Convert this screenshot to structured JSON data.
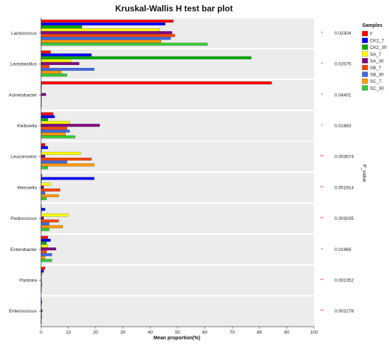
{
  "chart_data": {
    "type": "bar",
    "orientation": "horizontal",
    "title": "Kruskal-Wallis H test bar plot",
    "xlabel": "Mean proportion(%)",
    "xlim": [
      0,
      100
    ],
    "xticks": [
      0,
      10,
      20,
      30,
      40,
      50,
      60,
      70,
      80,
      90,
      100
    ],
    "categories": [
      "Lactococcus",
      "Lactobacillus",
      "Acinetobacter",
      "Klebsiella",
      "Leuconostoc",
      "Weissella",
      "Pediococcus",
      "Enterobacter",
      "Pantoea",
      "Enterococcus"
    ],
    "legend_title": "Samples",
    "legend_position": "right",
    "series": [
      {
        "name": "F",
        "color": "#ff0000",
        "values": [
          48.5,
          3.5,
          84.5,
          4.5,
          1.5,
          0.3,
          0.2,
          2.5,
          1.5,
          0.2
        ]
      },
      {
        "name": "CK2_7",
        "color": "#0000ff",
        "values": [
          45.5,
          18.5,
          0.2,
          5.0,
          2.5,
          19.5,
          1.5,
          3.5,
          1.0,
          0.3
        ]
      },
      {
        "name": "CK2_30",
        "color": "#00aa00",
        "values": [
          15.0,
          77.0,
          0.2,
          2.5,
          0.2,
          0.2,
          0.2,
          2.0,
          0.3,
          0.2
        ]
      },
      {
        "name": "SA_7",
        "color": "#ffff00",
        "values": [
          43.5,
          11.0,
          0.2,
          10.5,
          14.5,
          3.5,
          10.0,
          2.5,
          0.3,
          0.2
        ]
      },
      {
        "name": "SA_30",
        "color": "#800080",
        "values": [
          48.0,
          14.0,
          1.8,
          21.5,
          1.5,
          1.0,
          1.0,
          5.5,
          0.2,
          0.5
        ]
      },
      {
        "name": "SB_7",
        "color": "#ff4500",
        "values": [
          49.0,
          3.0,
          0.2,
          9.5,
          18.5,
          7.0,
          6.5,
          2.0,
          0.3,
          0.2
        ]
      },
      {
        "name": "SB_30",
        "color": "#4169e1",
        "values": [
          47.5,
          19.5,
          0.2,
          10.5,
          9.5,
          1.5,
          3.0,
          4.0,
          0.3,
          0.3
        ]
      },
      {
        "name": "SC_7",
        "color": "#ff9900",
        "values": [
          44.0,
          7.5,
          0.2,
          9.0,
          19.5,
          6.5,
          8.0,
          1.5,
          0.2,
          0.2
        ]
      },
      {
        "name": "SC_30",
        "color": "#33cc33",
        "values": [
          61.0,
          9.5,
          0.2,
          12.5,
          2.5,
          2.0,
          3.0,
          4.0,
          0.2,
          0.2
        ]
      }
    ],
    "significance": [
      "*",
      "*",
      "*",
      "*",
      "**",
      "**",
      "**",
      "*",
      "**",
      "**"
    ],
    "p_values": [
      "0.02304",
      "0.02075",
      "0.04401",
      "0.01883",
      "0.003674",
      "0.001914",
      "0.003035",
      "0.01969",
      "0.002352",
      "0.002278"
    ],
    "p_axis_title": "P_value",
    "grid": false,
    "panel_background": "#ececec"
  }
}
